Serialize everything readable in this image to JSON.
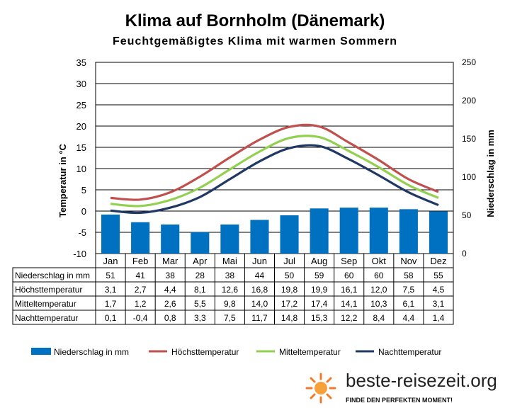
{
  "title": "Klima auf Bornholm (Dänemark)",
  "subtitle": "Feuchtgemäßigtes Klima mit warmen Sommern",
  "colors": {
    "precip": "#0070c0",
    "high": "#c0504d",
    "mean": "#92d050",
    "low": "#1f3864"
  },
  "chart_data": {
    "type": "bar",
    "categories": [
      "Jan",
      "Feb",
      "Mar",
      "Apr",
      "Mai",
      "Jun",
      "Jul",
      "Aug",
      "Sep",
      "Okt",
      "Nov",
      "Dez"
    ],
    "y_left_label": "Temperatur in °C",
    "y_right_label": "Niederschlag in mm",
    "y_left_ticks": [
      "35",
      "30",
      "25",
      "20",
      "15",
      "10",
      "5",
      "0",
      "-5",
      "-10"
    ],
    "y_right_ticks": [
      "250",
      "200",
      "150",
      "100",
      "50",
      "0"
    ],
    "ylim_left": [
      -10,
      35
    ],
    "ylim_right": [
      0,
      250
    ],
    "grid": true,
    "legend_position": "bottom",
    "series": [
      {
        "name": "Niederschlag in mm",
        "kind": "bar",
        "axis": "right",
        "values": [
          51,
          41,
          38,
          28,
          38,
          44,
          50,
          59,
          60,
          60,
          58,
          55
        ],
        "labels": [
          "51",
          "41",
          "38",
          "28",
          "38",
          "44",
          "50",
          "59",
          "60",
          "60",
          "58",
          "55"
        ]
      },
      {
        "name": "Höchsttemperatur",
        "kind": "line",
        "axis": "left",
        "values": [
          3.1,
          2.7,
          4.4,
          8.1,
          12.6,
          16.8,
          19.8,
          19.9,
          16.1,
          12.0,
          7.5,
          4.5
        ],
        "labels": [
          "3,1",
          "2,7",
          "4,4",
          "8,1",
          "12,6",
          "16,8",
          "19,8",
          "19,9",
          "16,1",
          "12,0",
          "7,5",
          "4,5"
        ]
      },
      {
        "name": "Mitteltemperatur",
        "kind": "line",
        "axis": "left",
        "values": [
          1.7,
          1.2,
          2.6,
          5.5,
          9.8,
          14.0,
          17.2,
          17.4,
          14.1,
          10.3,
          6.1,
          3.1
        ],
        "labels": [
          "1,7",
          "1,2",
          "2,6",
          "5,5",
          "9,8",
          "14,0",
          "17,2",
          "17,4",
          "14,1",
          "10,3",
          "6,1",
          "3,1"
        ]
      },
      {
        "name": "Nachttemperatur",
        "kind": "line",
        "axis": "left",
        "values": [
          0.1,
          -0.4,
          0.8,
          3.3,
          7.5,
          11.7,
          14.8,
          15.3,
          12.2,
          8.4,
          4.4,
          1.4
        ],
        "labels": [
          "0,1",
          "-0,4",
          "0,8",
          "3,3",
          "7,5",
          "11,7",
          "14,8",
          "15,3",
          "12,2",
          "8,4",
          "4,4",
          "1,4"
        ]
      }
    ]
  },
  "logo": {
    "name": "beste-reisezeit.org",
    "tagline": "FINDE DEN PERFEKTEN MOMENT!"
  }
}
